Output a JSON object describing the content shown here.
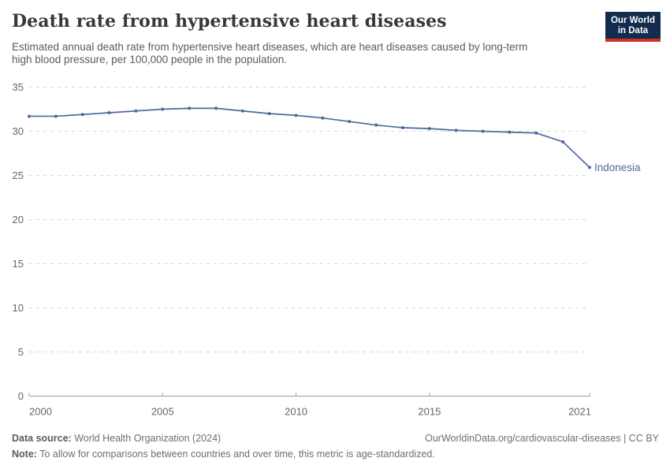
{
  "header": {
    "title": "Death rate from hypertensive heart diseases",
    "subtitle": "Estimated annual death rate from hypertensive heart diseases, which are heart diseases caused by long-term high blood pressure, per 100,000 people in the population.",
    "logo": {
      "line1": "Our World",
      "line2": "in Data"
    }
  },
  "chart_data": {
    "type": "line",
    "title": "Death rate from hypertensive heart diseases",
    "x": [
      2000,
      2001,
      2002,
      2003,
      2004,
      2005,
      2006,
      2007,
      2008,
      2009,
      2010,
      2011,
      2012,
      2013,
      2014,
      2015,
      2016,
      2017,
      2018,
      2019,
      2020,
      2021
    ],
    "series": [
      {
        "name": "Indonesia",
        "color": "#4c6a9c",
        "values": [
          31.7,
          31.7,
          31.9,
          32.1,
          32.3,
          32.5,
          32.6,
          32.6,
          32.3,
          32.0,
          31.8,
          31.5,
          31.1,
          30.7,
          30.4,
          30.3,
          30.1,
          30.0,
          29.9,
          29.8,
          28.8,
          25.9
        ]
      }
    ],
    "end_label": "Indonesia",
    "xlabel": "",
    "ylabel": "",
    "ylim": [
      0,
      35
    ],
    "yticks": [
      0,
      5,
      10,
      15,
      20,
      25,
      30,
      35
    ],
    "xticks": [
      2000,
      2005,
      2010,
      2015,
      2021
    ],
    "grid": "horizontal-dashed",
    "legend_position": "end-of-line"
  },
  "colors": {
    "line": "#4c6a9c",
    "grid": "#d7d7d7",
    "axis": "#9c9c9c",
    "tick_label": "#666666",
    "title": "#383838",
    "subtitle": "#5b5b5b",
    "logo_bg": "#122c4d",
    "logo_accent": "#cf3129"
  },
  "footer": {
    "data_source_label": "Data source:",
    "data_source_value": " World Health Organization (2024)",
    "link": "OurWorldinData.org/cardiovascular-diseases | CC BY",
    "note_label": "Note:",
    "note_value": " To allow for comparisons between countries and over time, this metric is age-standardized."
  }
}
